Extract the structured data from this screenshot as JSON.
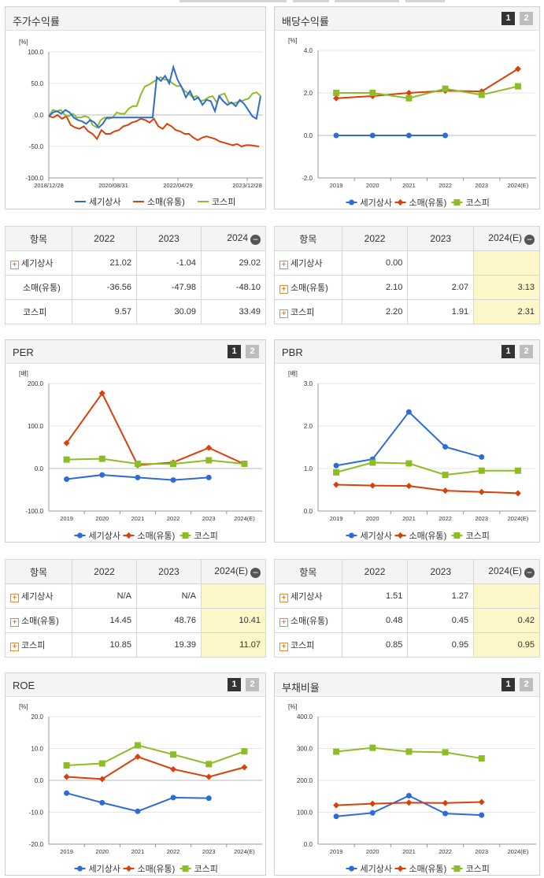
{
  "series_names": [
    "세기상사",
    "소매(유통)",
    "코스피"
  ],
  "colors": {
    "s1": "#2e6bd6",
    "s2": "#d9400a",
    "s3": "#8cbd26"
  },
  "buttons": {
    "b1": "1",
    "b2": "2",
    "minus": "−",
    "plus": "+"
  },
  "chart_data": [
    {
      "key": "stock",
      "title": "주가수익률",
      "type": "line",
      "unit": "[%]",
      "ylim": [
        -100,
        100
      ],
      "yticks": [
        "100.0",
        "50.0",
        "0.0",
        "-50.0",
        "-100.0"
      ],
      "xticks": [
        "2018/12/28",
        "2020/08/31",
        "2022/04/29",
        "2023/12/28"
      ],
      "series": [
        {
          "name": "세기상사",
          "values": [
            -2,
            4,
            6,
            2,
            8,
            4,
            -4,
            -8,
            -10,
            -14,
            -8,
            -12,
            -20,
            -14,
            -4,
            -4,
            -4,
            -4,
            -4,
            -4,
            -4,
            -4,
            -4,
            -4,
            -4,
            -4,
            60,
            54,
            62,
            50,
            76,
            56,
            44,
            28,
            38,
            24,
            28,
            16,
            24,
            22,
            6,
            30,
            22,
            16,
            20,
            14,
            24,
            18,
            8,
            -2,
            -6,
            30
          ]
        },
        {
          "name": "소매(유통)",
          "values": [
            -2,
            -4,
            0,
            -6,
            -2,
            -16,
            -20,
            -22,
            -18,
            -26,
            -30,
            -38,
            -24,
            -30,
            -30,
            -26,
            -24,
            -18,
            -16,
            -12,
            -10,
            -6,
            -8,
            -12,
            -6,
            -18,
            -22,
            -14,
            -18,
            -24,
            -26,
            -30,
            -30,
            -36,
            -40,
            -36,
            -34,
            -36,
            -38,
            -42,
            -44,
            -46,
            -48,
            -46,
            -50,
            -48,
            -48,
            -49,
            -50
          ]
        },
        {
          "name": "코스피",
          "values": [
            -2,
            8,
            6,
            8,
            0,
            -2,
            2,
            -4,
            -4,
            -2,
            -4,
            -16,
            -20,
            -8,
            -4,
            -6,
            -4,
            4,
            2,
            2,
            10,
            14,
            14,
            32,
            45,
            48,
            52,
            56,
            60,
            56,
            56,
            50,
            46,
            46,
            38,
            34,
            28,
            30,
            22,
            24,
            28,
            30,
            20,
            32,
            34,
            20,
            18,
            20,
            22,
            24,
            26,
            34,
            36,
            30
          ]
        }
      ]
    },
    {
      "key": "div",
      "title": "배당수익률",
      "type": "line",
      "unit": "[%]",
      "ylim": [
        -2,
        4
      ],
      "yticks": [
        "4.0",
        "2.0",
        "0.0",
        "-2.0"
      ],
      "categories": [
        "2019",
        "2020",
        "2021",
        "2022",
        "2023",
        "2024(E)"
      ],
      "series": [
        {
          "name": "세기상사",
          "values": [
            0,
            0,
            0,
            0,
            null,
            null
          ]
        },
        {
          "name": "소매(유통)",
          "values": [
            1.75,
            1.85,
            2.0,
            2.1,
            2.07,
            3.13
          ]
        },
        {
          "name": "코스피",
          "values": [
            2.0,
            2.0,
            1.75,
            2.2,
            1.91,
            2.31
          ]
        }
      ]
    },
    {
      "key": "per",
      "title": "PER",
      "type": "line",
      "unit": "[배]",
      "ylim": [
        -100,
        200
      ],
      "yticks": [
        "200.0",
        "100.0",
        "0.0",
        "-100.0"
      ],
      "categories": [
        "2019",
        "2020",
        "2021",
        "2022",
        "2023",
        "2024(E)"
      ],
      "series": [
        {
          "name": "세기상사",
          "values": [
            -25,
            -15,
            -21,
            -27,
            -21,
            null
          ]
        },
        {
          "name": "소매(유통)",
          "values": [
            60,
            177,
            8,
            14.45,
            48.76,
            10.41
          ]
        },
        {
          "name": "코스피",
          "values": [
            21,
            23,
            11,
            10.85,
            19.39,
            11.07
          ]
        }
      ]
    },
    {
      "key": "pbr",
      "title": "PBR",
      "type": "line",
      "unit": "[배]",
      "ylim": [
        0,
        3
      ],
      "yticks": [
        "3.0",
        "2.0",
        "1.0",
        "0.0"
      ],
      "categories": [
        "2019",
        "2020",
        "2021",
        "2022",
        "2023",
        "2024(E)"
      ],
      "series": [
        {
          "name": "세기상사",
          "values": [
            1.07,
            1.22,
            2.33,
            1.51,
            1.27,
            null
          ]
        },
        {
          "name": "소매(유통)",
          "values": [
            0.62,
            0.6,
            0.59,
            0.48,
            0.45,
            0.42
          ]
        },
        {
          "name": "코스피",
          "values": [
            0.91,
            1.14,
            1.12,
            0.85,
            0.95,
            0.95
          ]
        }
      ]
    },
    {
      "key": "roe",
      "title": "ROE",
      "type": "line",
      "unit": "[%]",
      "ylim": [
        -20,
        20
      ],
      "yticks": [
        "20.0",
        "10.0",
        "0.0",
        "-10.0",
        "-20.0"
      ],
      "categories": [
        "2019",
        "2020",
        "2021",
        "2022",
        "2023",
        "2024(E)"
      ],
      "series": [
        {
          "name": "세기상사",
          "values": [
            -4.0,
            -7.0,
            -9.7,
            -5.4,
            -5.6,
            null
          ]
        },
        {
          "name": "소매(유통)",
          "values": [
            1.1,
            0.4,
            7.4,
            3.5,
            1.1,
            4.1
          ]
        },
        {
          "name": "코스피",
          "values": [
            4.7,
            5.3,
            11.0,
            8.1,
            5.1,
            9.1
          ]
        }
      ]
    },
    {
      "key": "debt",
      "title": "부채비율",
      "type": "line",
      "unit": "[%]",
      "ylim": [
        0,
        400
      ],
      "yticks": [
        "400.0",
        "300.0",
        "200.0",
        "100.0",
        "0.0"
      ],
      "categories": [
        "2019",
        "2020",
        "2021",
        "2022",
        "2023",
        "2024(E)"
      ],
      "series": [
        {
          "name": "세기상사",
          "values": [
            87,
            98,
            152,
            96,
            91,
            null
          ]
        },
        {
          "name": "소매(유통)",
          "values": [
            122,
            127,
            130,
            129,
            132,
            null
          ]
        },
        {
          "name": "코스피",
          "values": [
            290,
            302,
            290,
            288,
            269,
            null
          ]
        }
      ]
    }
  ],
  "tables": {
    "stock": {
      "head": [
        "항목",
        "2022",
        "2023",
        "2024"
      ],
      "rows": [
        {
          "label": "세기상사",
          "plus": true,
          "vals": [
            "21.02",
            "-1.04",
            "29.02"
          ]
        },
        {
          "label": "소매(유통)",
          "plus": false,
          "vals": [
            "-36.56",
            "-47.98",
            "-48.10"
          ]
        },
        {
          "label": "코스피",
          "plus": false,
          "vals": [
            "9.57",
            "30.09",
            "33.49"
          ]
        }
      ]
    },
    "div": {
      "head": [
        "항목",
        "2022",
        "2023",
        "2024(E)"
      ],
      "rows": [
        {
          "label": "세기상사",
          "plus": true,
          "vals": [
            "0.00",
            "",
            ""
          ]
        },
        {
          "label": "소매(유통)",
          "plus": true,
          "vals": [
            "2.10",
            "2.07",
            "3.13"
          ]
        },
        {
          "label": "코스피",
          "plus": true,
          "vals": [
            "2.20",
            "1.91",
            "2.31"
          ]
        }
      ]
    },
    "per": {
      "head": [
        "항목",
        "2022",
        "2023",
        "2024(E)"
      ],
      "rows": [
        {
          "label": "세기상사",
          "plus": true,
          "vals": [
            "N/A",
            "N/A",
            ""
          ]
        },
        {
          "label": "소매(유통)",
          "plus": true,
          "vals": [
            "14.45",
            "48.76",
            "10.41"
          ]
        },
        {
          "label": "코스피",
          "plus": true,
          "vals": [
            "10.85",
            "19.39",
            "11.07"
          ]
        }
      ]
    },
    "pbr": {
      "head": [
        "항목",
        "2022",
        "2023",
        "2024(E)"
      ],
      "rows": [
        {
          "label": "세기상사",
          "plus": true,
          "vals": [
            "1.51",
            "1.27",
            ""
          ]
        },
        {
          "label": "소매(유통)",
          "plus": true,
          "vals": [
            "0.48",
            "0.45",
            "0.42"
          ]
        },
        {
          "label": "코스피",
          "plus": true,
          "vals": [
            "0.85",
            "0.95",
            "0.95"
          ]
        }
      ]
    }
  }
}
